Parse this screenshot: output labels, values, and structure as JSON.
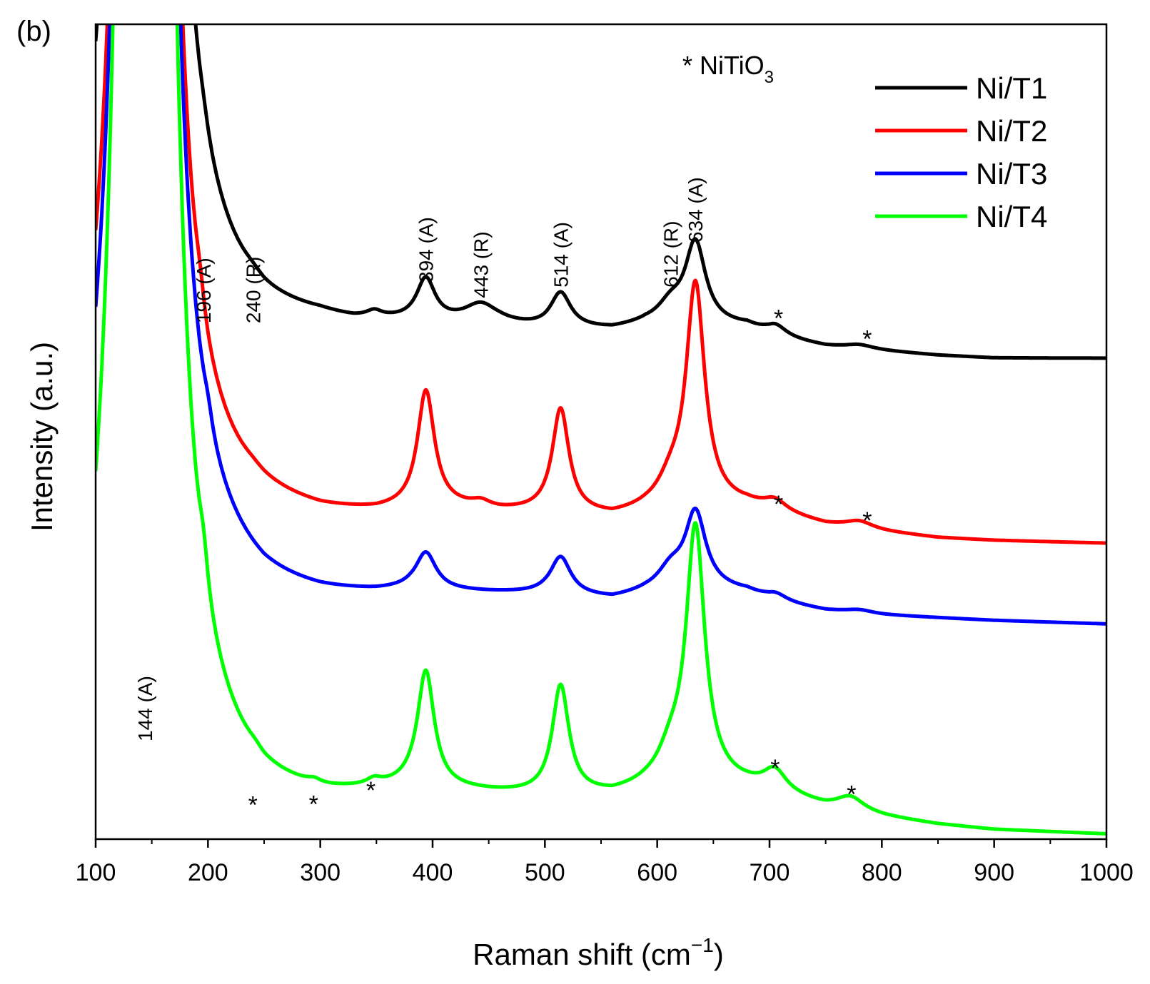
{
  "chart_data": {
    "type": "line",
    "panel_label": "(b)",
    "xlabel": "Raman shift (cm",
    "xlabel_sup": "−1",
    "xlabel_suffix": ")",
    "ylabel": "Intensity (a.u.)",
    "xlim": [
      100,
      1000
    ],
    "ylim": [
      0,
      100
    ],
    "x_ticks": [
      100,
      200,
      300,
      400,
      500,
      600,
      700,
      800,
      900,
      1000
    ],
    "x_tick_labels": [
      "100",
      "200",
      "300",
      "400",
      "500",
      "600",
      "700",
      "800",
      "900",
      "1000"
    ],
    "legend_position": "top-right",
    "phase_note": {
      "prefix": "* NiTiO",
      "subscript": "3"
    },
    "series": [
      {
        "name": "Ni/T1",
        "color": "#000000",
        "baseline": [
          [
            100,
            59.5
          ],
          [
            110,
            60.8
          ],
          [
            125,
            63.5
          ],
          [
            200,
            62.8
          ],
          [
            250,
            61.9
          ],
          [
            300,
            62.2
          ],
          [
            330,
            62.0
          ],
          [
            350,
            62.2
          ],
          [
            380,
            62.3
          ],
          [
            460,
            62.4
          ],
          [
            500,
            62.0
          ],
          [
            560,
            62.0
          ],
          [
            590,
            62.7
          ],
          [
            640,
            62.7
          ],
          [
            680,
            62.5
          ],
          [
            700,
            61.4
          ],
          [
            750,
            60.2
          ],
          [
            800,
            59.7
          ],
          [
            850,
            59.2
          ],
          [
            900,
            58.9
          ],
          [
            1000,
            58.9
          ]
        ],
        "peaks": [
          [
            144,
            1200,
            8
          ],
          [
            196,
            0.8,
            5
          ],
          [
            240,
            0.4,
            10
          ],
          [
            348,
            0.7,
            8
          ],
          [
            394,
            5.1,
            10
          ],
          [
            443,
            2.3,
            18
          ],
          [
            514,
            4.3,
            11
          ],
          [
            612,
            2.2,
            14
          ],
          [
            634,
            9.9,
            11
          ],
          [
            705,
            1.4,
            12
          ],
          [
            780,
            0.5,
            15
          ]
        ]
      },
      {
        "name": "Ni/T2",
        "color": "#ff0000",
        "baseline": [
          [
            100,
            39.5
          ],
          [
            110,
            41.0
          ],
          [
            125,
            44.0
          ],
          [
            200,
            39.5
          ],
          [
            250,
            38.8
          ],
          [
            300,
            38.5
          ],
          [
            350,
            38.9
          ],
          [
            380,
            39.5
          ],
          [
            400,
            40.0
          ],
          [
            460,
            39.5
          ],
          [
            500,
            39.5
          ],
          [
            560,
            39.0
          ],
          [
            590,
            39.8
          ],
          [
            640,
            40.5
          ],
          [
            680,
            40.5
          ],
          [
            700,
            40.0
          ],
          [
            750,
            38.3
          ],
          [
            800,
            37.5
          ],
          [
            850,
            36.8
          ],
          [
            900,
            36.5
          ],
          [
            1000,
            36.2
          ]
        ],
        "peaks": [
          [
            144,
            1100,
            8
          ],
          [
            193,
            2.0,
            5
          ],
          [
            240,
            0.3,
            10
          ],
          [
            443,
            0.7,
            10
          ],
          [
            394,
            14.0,
            9
          ],
          [
            514,
            12.7,
            9
          ],
          [
            612,
            2.5,
            14
          ],
          [
            634,
            27.0,
            10
          ],
          [
            705,
            1.2,
            12
          ],
          [
            780,
            0.9,
            15
          ]
        ]
      },
      {
        "name": "Ni/T3",
        "color": "#0000ff",
        "baseline": [
          [
            100,
            28.5
          ],
          [
            110,
            30.0
          ],
          [
            125,
            33.0
          ],
          [
            200,
            30.0
          ],
          [
            250,
            28.5
          ],
          [
            300,
            28.5
          ],
          [
            350,
            29.0
          ],
          [
            380,
            29.5
          ],
          [
            460,
            29.5
          ],
          [
            500,
            29.5
          ],
          [
            560,
            29.0
          ],
          [
            590,
            29.8
          ],
          [
            640,
            30.5
          ],
          [
            680,
            30.0
          ],
          [
            700,
            29.0
          ],
          [
            750,
            27.8
          ],
          [
            800,
            27.3
          ],
          [
            850,
            27.0
          ],
          [
            900,
            26.7
          ],
          [
            1000,
            26.3
          ]
        ],
        "peaks": [
          [
            144,
            1150,
            8
          ],
          [
            200,
            1.6,
            5
          ],
          [
            394,
            4.5,
            11
          ],
          [
            514,
            4.6,
            11
          ],
          [
            612,
            2.4,
            14
          ],
          [
            634,
            9.1,
            11
          ],
          [
            705,
            0.9,
            12
          ],
          [
            780,
            0.4,
            15
          ]
        ]
      },
      {
        "name": "Ni/T4",
        "color": "#00ff00",
        "baseline": [
          [
            100,
            3.5
          ],
          [
            110,
            5.0
          ],
          [
            125,
            8.0
          ],
          [
            200,
            4.2
          ],
          [
            250,
            3.0
          ],
          [
            300,
            3.3
          ],
          [
            330,
            4.0
          ],
          [
            380,
            5.2
          ],
          [
            460,
            4.8
          ],
          [
            500,
            4.7
          ],
          [
            560,
            4.8
          ],
          [
            590,
            5.7
          ],
          [
            640,
            6.5
          ],
          [
            680,
            6.0
          ],
          [
            700,
            5.6
          ],
          [
            750,
            3.6
          ],
          [
            800,
            2.5
          ],
          [
            850,
            1.6
          ],
          [
            900,
            1.0
          ],
          [
            1000,
            0.5
          ]
        ],
        "peaks": [
          [
            144,
            1300,
            8
          ],
          [
            196,
            3.7,
            5
          ],
          [
            242,
            0.4,
            8
          ],
          [
            295,
            0.5,
            8
          ],
          [
            348,
            0.7,
            8
          ],
          [
            394,
            14.1,
            9
          ],
          [
            514,
            13.3,
            9
          ],
          [
            612,
            3.1,
            14
          ],
          [
            634,
            31.0,
            10
          ],
          [
            705,
            2.4,
            12
          ],
          [
            772,
            1.7,
            15
          ]
        ]
      }
    ],
    "annotations": {
      "peak_labels": [
        {
          "text": "144 (A)",
          "x": 144,
          "y": 12
        },
        {
          "text": "196 (A)",
          "x": 196,
          "y": 63.3
        },
        {
          "text": "240 (R)",
          "x": 240,
          "y": 63.3
        },
        {
          "text": "394 (A)",
          "x": 394,
          "y": 68.3
        },
        {
          "text": "443 (R)",
          "x": 443,
          "y": 66.4
        },
        {
          "text": "514 (A)",
          "x": 514,
          "y": 67.7
        },
        {
          "text": "612 (R)",
          "x": 612,
          "y": 67.7
        },
        {
          "text": "634 (A)",
          "x": 634,
          "y": 73.2
        }
      ],
      "stars": [
        {
          "text": "*",
          "x": 708,
          "y": 65.0
        },
        {
          "text": "*",
          "x": 787,
          "y": 62.5
        },
        {
          "text": "*",
          "x": 708,
          "y": 42.2
        },
        {
          "text": "*",
          "x": 787,
          "y": 40.2
        },
        {
          "text": "*",
          "x": 240,
          "y": 5.3
        },
        {
          "text": "*",
          "x": 294,
          "y": 5.4
        },
        {
          "text": "*",
          "x": 345,
          "y": 7.1
        },
        {
          "text": "*",
          "x": 705,
          "y": 9.8
        },
        {
          "text": "*",
          "x": 773,
          "y": 6.6
        }
      ]
    }
  }
}
